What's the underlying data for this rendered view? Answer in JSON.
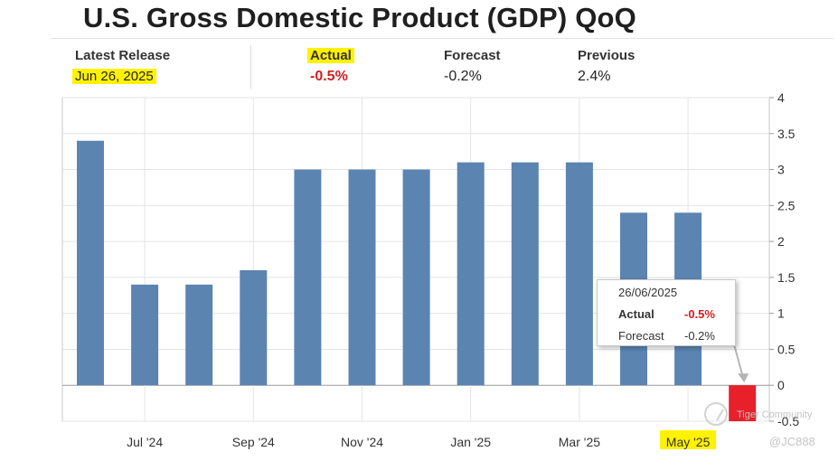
{
  "title": "U.S. Gross Domestic Product (GDP) QoQ",
  "release": {
    "latest_label": "Latest Release",
    "date": "Jun 26, 2025",
    "actual_label": "Actual",
    "actual_value": "-0.5%",
    "forecast_label": "Forecast",
    "forecast_value": "-0.2%",
    "previous_label": "Previous",
    "previous_value": "2.4%"
  },
  "colors": {
    "bar": "#5b84b1",
    "negative_bar": "#e8202a",
    "grid": "#e4e4e4",
    "highlight": "#fff200",
    "negative_text": "#d11f1f"
  },
  "chart_data": {
    "type": "bar",
    "title": "U.S. Gross Domestic Product (GDP) QoQ",
    "categories": [
      "",
      "Jul '24",
      "",
      "Sep '24",
      "",
      "Nov '24",
      "",
      "Jan '25",
      "",
      "Mar '25",
      "",
      "May '25",
      ""
    ],
    "x_tick_labels": [
      "Jul '24",
      "Sep '24",
      "Nov '24",
      "Jan '25",
      "Mar '25",
      "May '25"
    ],
    "values": [
      3.4,
      1.4,
      1.4,
      1.6,
      3.0,
      3.0,
      3.0,
      3.1,
      3.1,
      3.1,
      2.4,
      2.4,
      -0.5
    ],
    "y_ticks": [
      "4",
      "3.5",
      "3",
      "2.5",
      "2",
      "1.5",
      "1",
      "0.5",
      "0",
      "-0.5"
    ],
    "ylim": [
      -0.5,
      4
    ],
    "y_axis_side": "right",
    "grid": true,
    "xlabel": "",
    "ylabel": ""
  },
  "tooltip": {
    "date": "26/06/2025",
    "actual_label": "Actual",
    "actual_value": "-0.5%",
    "forecast_label": "Forecast",
    "forecast_value": "-0.2%"
  },
  "watermark": {
    "community": "Tiger Community",
    "handle": "@JC888"
  }
}
